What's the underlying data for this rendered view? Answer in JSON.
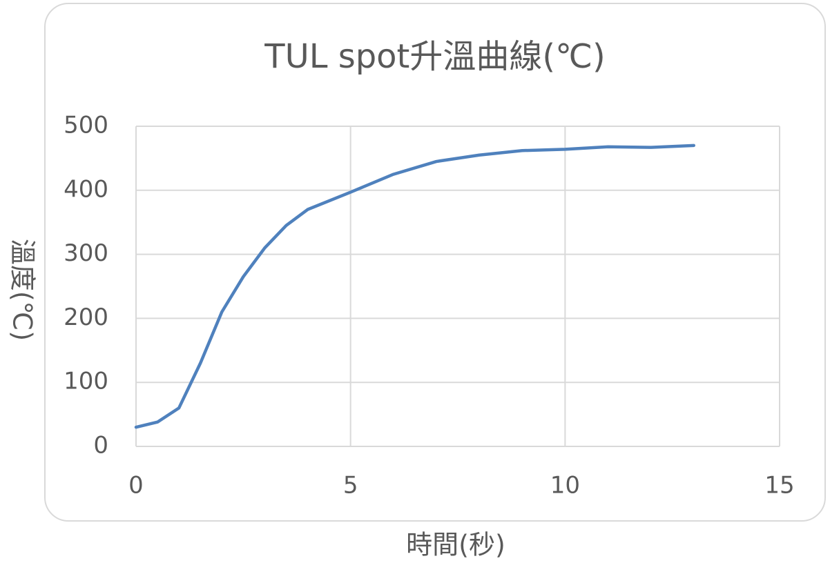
{
  "chart_data": {
    "type": "line",
    "title": "TUL spot升溫曲線(℃)",
    "x_label": "時間(秒)",
    "y_label": "溫度(℃)",
    "x": [
      0,
      0.5,
      1,
      1.5,
      2,
      2.5,
      3,
      3.5,
      4,
      5,
      6,
      7,
      8,
      9,
      10,
      11,
      12,
      13
    ],
    "series": [
      {
        "name": "溫度",
        "color": "#4f81bd",
        "values": [
          30,
          38,
          60,
          130,
          210,
          265,
          310,
          345,
          370,
          397,
          425,
          445,
          455,
          462,
          464,
          468,
          467,
          470
        ]
      }
    ],
    "xlim": [
      0,
      15
    ],
    "xticks": [
      0,
      5,
      10,
      15
    ],
    "ylim": [
      0,
      500
    ],
    "yticks": [
      0,
      100,
      200,
      300,
      400,
      500
    ],
    "grid": true
  }
}
